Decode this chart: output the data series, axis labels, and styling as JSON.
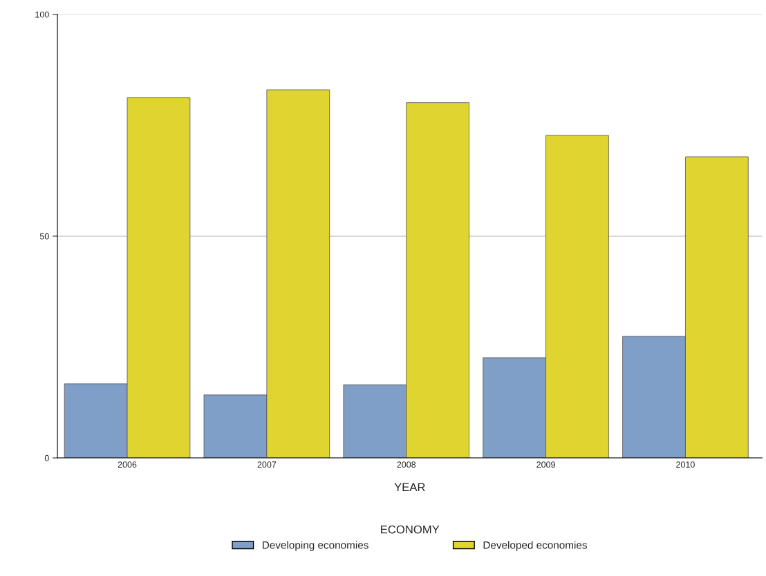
{
  "chart_data": {
    "type": "bar",
    "categories": [
      "2006",
      "2007",
      "2008",
      "2009",
      "2010"
    ],
    "xlabel": "YEAR",
    "legend_title": "ECONOMY",
    "series": [
      {
        "name": "Developing economies",
        "color": "#7f9fc8",
        "values": [
          16.7,
          14.2,
          16.5,
          22.6,
          27.4
        ]
      },
      {
        "name": "Developed economies",
        "color": "#e0d530",
        "values": [
          81.2,
          83.0,
          80.1,
          72.7,
          67.9
        ]
      }
    ],
    "ylim": [
      0,
      100
    ],
    "yticks": [
      0,
      50,
      100
    ],
    "grid": "y",
    "legend": "bottom"
  }
}
